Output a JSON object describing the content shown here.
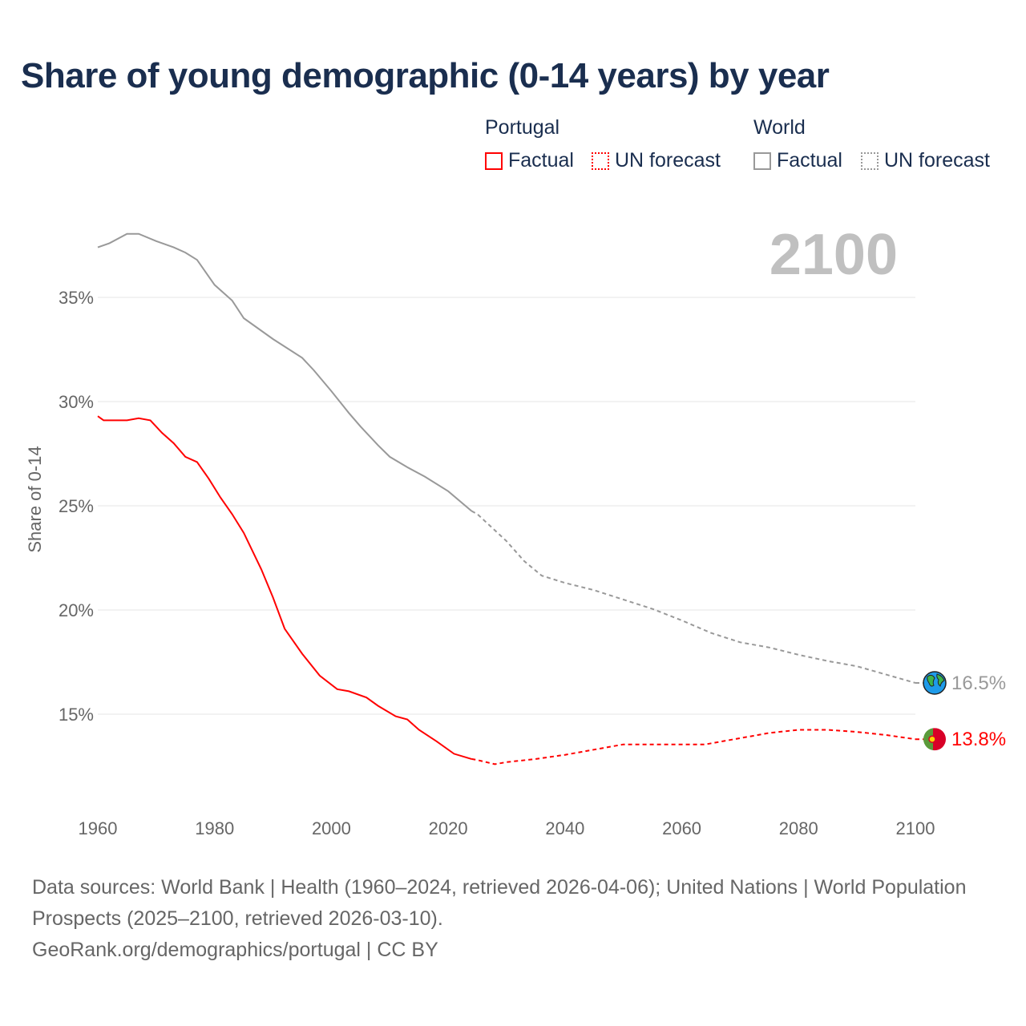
{
  "title": "Share of young demographic (0-14 years) by year",
  "legend": {
    "groups": [
      {
        "name": "Portugal",
        "factual": "Factual",
        "forecast": "UN forecast",
        "color": "#ff0000"
      },
      {
        "name": "World",
        "factual": "Factual",
        "forecast": "UN forecast",
        "color": "#999999"
      }
    ]
  },
  "year_label": "2100",
  "footer": {
    "line1": "Data sources: World Bank | Health (1960–2024, retrieved 2026-04-06); United Nations | World Population Prospects (2025–2100, retrieved 2026-03-10).",
    "line2": "GeoRank.org/demographics/portugal | CC BY"
  },
  "chart_data": {
    "type": "line",
    "title": "Share of young demographic (0-14 years) by year",
    "xlabel": "",
    "ylabel": "Share of 0-14",
    "xlim": [
      1960,
      2100
    ],
    "ylim": [
      11.5,
      38.5
    ],
    "x_ticks": [
      1960,
      1980,
      2000,
      2020,
      2040,
      2060,
      2080,
      2100
    ],
    "x_tick_labels": [
      "1960",
      "1980",
      "2000",
      "2020",
      "2040",
      "2060",
      "2080",
      "2100"
    ],
    "y_ticks": [
      15,
      20,
      25,
      30,
      35
    ],
    "y_tick_labels": [
      "15%",
      "20%",
      "25%",
      "30%",
      "35%"
    ],
    "grid": true,
    "forecast_start": 2024,
    "series": [
      {
        "name": "World",
        "color": "#999999",
        "end_label": "16.5%",
        "x": [
          1960,
          1962,
          1965,
          1967,
          1970,
          1973,
          1975,
          1977,
          1980,
          1983,
          1985,
          1990,
          1995,
          1997,
          2000,
          2003,
          2005,
          2008,
          2010,
          2013,
          2016,
          2020,
          2024,
          2025,
          2030,
          2033,
          2036,
          2040,
          2045,
          2050,
          2055,
          2060,
          2065,
          2070,
          2075,
          2080,
          2085,
          2090,
          2095,
          2100
        ],
        "values": [
          37.4,
          37.6,
          38.05,
          38.05,
          37.7,
          37.4,
          37.15,
          36.8,
          35.6,
          34.85,
          34.0,
          33.0,
          32.1,
          31.5,
          30.5,
          29.45,
          28.8,
          27.9,
          27.35,
          26.85,
          26.4,
          25.7,
          24.75,
          24.6,
          23.3,
          22.35,
          21.65,
          21.3,
          20.95,
          20.5,
          20.05,
          19.5,
          18.9,
          18.45,
          18.2,
          17.85,
          17.55,
          17.3,
          16.9,
          16.5
        ]
      },
      {
        "name": "Portugal",
        "color": "#ff0000",
        "end_label": "13.8%",
        "x": [
          1960,
          1961,
          1965,
          1967,
          1969,
          1971,
          1973,
          1975,
          1977,
          1979,
          1981,
          1983,
          1985,
          1988,
          1990,
          1992,
          1995,
          1998,
          2001,
          2003,
          2006,
          2008,
          2011,
          2013,
          2015,
          2018,
          2021,
          2024,
          2025,
          2028,
          2030,
          2035,
          2040,
          2045,
          2050,
          2060,
          2064,
          2070,
          2075,
          2080,
          2085,
          2090,
          2095,
          2100
        ],
        "values": [
          29.3,
          29.1,
          29.1,
          29.2,
          29.1,
          28.5,
          28.0,
          27.35,
          27.1,
          26.3,
          25.4,
          24.6,
          23.7,
          21.95,
          20.6,
          19.1,
          17.9,
          16.85,
          16.2,
          16.1,
          15.8,
          15.4,
          14.9,
          14.75,
          14.25,
          13.7,
          13.1,
          12.85,
          12.8,
          12.6,
          12.7,
          12.85,
          13.05,
          13.3,
          13.55,
          13.55,
          13.55,
          13.85,
          14.1,
          14.25,
          14.25,
          14.15,
          14.0,
          13.8
        ]
      }
    ]
  }
}
